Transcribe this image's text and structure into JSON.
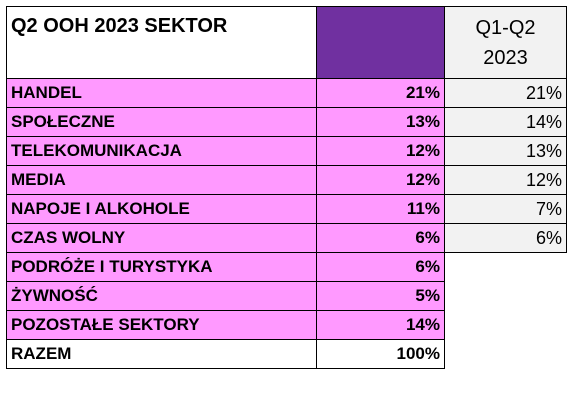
{
  "header": {
    "title": "Q2 OOH 2023 SEKTOR",
    "period": [
      "Q1-Q2",
      "2023"
    ]
  },
  "table": {
    "rows": [
      [
        "HANDEL",
        "21%",
        "21%"
      ],
      [
        "SPOŁECZNE",
        "13%",
        "14%"
      ],
      [
        "TELEKOMUNIKACJA",
        "12%",
        "13%"
      ],
      [
        "MEDIA",
        "12%",
        "12%"
      ],
      [
        "NAPOJE I ALKOHOLE",
        "11%",
        "7%"
      ],
      [
        "CZAS WOLNY",
        "6%",
        "6%"
      ],
      [
        "PODRÓŻE I TURYSTYKA",
        "6%"
      ],
      [
        "ŻYWNOŚĆ",
        "5%"
      ],
      [
        "POZOSTAŁE SEKTORY",
        "14%"
      ],
      [
        "RAZEM",
        "100%"
      ]
    ]
  }
}
